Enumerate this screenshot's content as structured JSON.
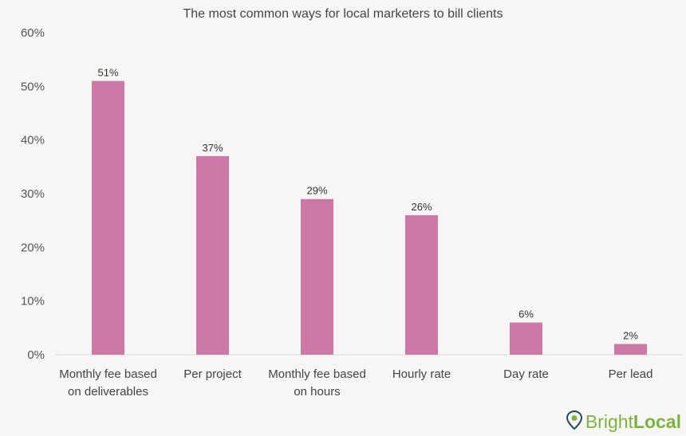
{
  "chart_data": {
    "type": "bar",
    "title": "The most common ways for local marketers to bill clients",
    "categories": [
      [
        "Monthly fee based",
        "on deliverables"
      ],
      [
        "Per project"
      ],
      [
        "Monthly fee based",
        "on hours"
      ],
      [
        "Hourly rate"
      ],
      [
        "Day rate"
      ],
      [
        "Per lead"
      ]
    ],
    "values": [
      51,
      37,
      29,
      26,
      6,
      2
    ],
    "data_labels": [
      "51%",
      "37%",
      "29%",
      "26%",
      "6%",
      "2%"
    ],
    "ylim": [
      0,
      60
    ],
    "yticks": [
      0,
      10,
      20,
      30,
      40,
      50,
      60
    ],
    "ytick_labels": [
      "0%",
      "10%",
      "20%",
      "30%",
      "40%",
      "50%",
      "60%"
    ],
    "grid": false,
    "colors": {
      "bar": "#cc79a7",
      "baseline": "#d9d9d9"
    }
  },
  "logo": {
    "part1": "Bright",
    "part2": "Local",
    "icon": "map-pin-icon",
    "color": "#7cb342"
  }
}
